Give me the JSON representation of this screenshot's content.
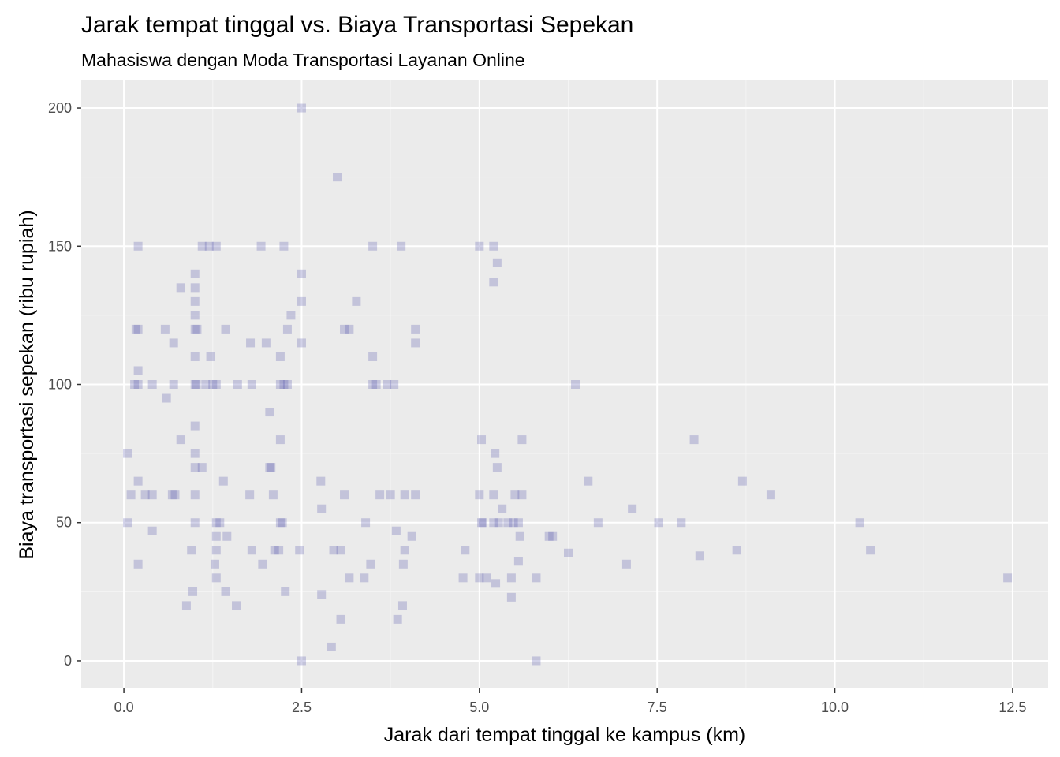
{
  "chart_data": {
    "type": "scatter",
    "title": "Jarak tempat tinggal vs. Biaya Transportasi Sepekan",
    "subtitle": "Mahasiswa dengan Moda Transportasi Layanan Online",
    "xlabel": "Jarak dari tempat tinggal ke kampus (km)",
    "ylabel": "Biaya transportasi sepekan (ribu rupiah)",
    "xlim": [
      -0.6,
      13.0
    ],
    "ylim": [
      -10,
      210
    ],
    "x_ticks": [
      0,
      2.5,
      5,
      7.5,
      10,
      12.5
    ],
    "x_tick_labels": [
      "0.0",
      "2.5",
      "5.0",
      "7.5",
      "10.0",
      "12.5"
    ],
    "y_ticks": [
      0,
      50,
      100,
      150,
      200
    ],
    "y_tick_labels": [
      "0",
      "50",
      "100",
      "150",
      "200"
    ],
    "grid": true,
    "legend": "none",
    "point_shape": "square",
    "point_color": "#4b4ba8",
    "point_opacity": 0.25,
    "panel_background": "#ebebeb",
    "x": [
      2.5,
      3.0,
      0.2,
      1.1,
      1.2,
      1.3,
      1.93,
      2.25,
      3.5,
      3.9,
      5.0,
      5.2,
      5.25,
      5.2,
      1.0,
      2.5,
      1.0,
      0.8,
      1.0,
      2.5,
      3.27,
      1.0,
      2.35,
      0.17,
      0.2,
      0.58,
      1.0,
      1.03,
      1.43,
      2.3,
      3.1,
      3.17,
      4.1,
      0.7,
      1.78,
      2.0,
      2.5,
      4.1,
      1.0,
      1.22,
      2.2,
      3.5,
      0.2,
      0.15,
      0.2,
      0.4,
      0.7,
      1.0,
      1.02,
      1.15,
      1.25,
      1.3,
      1.6,
      1.8,
      2.2,
      2.25,
      2.3,
      3.5,
      3.55,
      3.7,
      3.8,
      6.35,
      0.6,
      2.05,
      1.0,
      0.8,
      2.2,
      5.03,
      5.6,
      8.02,
      0.05,
      1.0,
      5.22,
      1.0,
      1.1,
      2.05,
      2.07,
      5.25,
      1.4,
      2.77,
      6.53,
      8.7,
      0.2,
      0.1,
      0.3,
      0.4,
      0.68,
      0.72,
      1.0,
      1.77,
      2.1,
      3.1,
      3.6,
      3.75,
      3.95,
      4.1,
      5.0,
      5.2,
      5.5,
      5.6,
      9.1,
      2.78,
      5.32,
      7.15,
      0.05,
      1.0,
      1.3,
      1.35,
      2.2,
      2.23,
      3.4,
      5.05,
      5.03,
      5.2,
      5.27,
      5.4,
      5.48,
      5.55,
      6.67,
      7.52,
      7.84,
      10.35,
      0.4,
      3.83,
      1.45,
      5.57,
      5.98,
      6.03,
      1.3,
      4.05,
      0.95,
      1.3,
      1.8,
      2.12,
      2.18,
      2.47,
      2.95,
      3.05,
      3.95,
      4.8,
      6.25,
      8.62,
      10.5,
      8.1,
      0.2,
      1.28,
      1.95,
      3.47,
      3.93,
      5.55,
      7.07,
      1.3,
      3.17,
      3.38,
      4.77,
      5.0,
      5.1,
      5.45,
      5.8,
      12.43,
      1.43,
      2.27,
      0.97,
      2.78,
      5.23,
      5.45,
      0.88,
      1.58,
      3.92,
      3.05,
      3.85,
      2.92,
      2.5,
      5.8
    ],
    "y": [
      200,
      175,
      150,
      150,
      150,
      150,
      150,
      150,
      150,
      150,
      150,
      150,
      144,
      137,
      140,
      140,
      135,
      135,
      130,
      130,
      130,
      125,
      125,
      120,
      120,
      120,
      120,
      120,
      120,
      120,
      120,
      120,
      120,
      115,
      115,
      115,
      115,
      115,
      110,
      110,
      110,
      110,
      105,
      100,
      100,
      100,
      100,
      100,
      100,
      100,
      100,
      100,
      100,
      100,
      100,
      100,
      100,
      100,
      100,
      100,
      100,
      100,
      95,
      90,
      85,
      80,
      80,
      80,
      80,
      80,
      75,
      75,
      75,
      70,
      70,
      70,
      70,
      70,
      65,
      65,
      65,
      65,
      65,
      60,
      60,
      60,
      60,
      60,
      60,
      60,
      60,
      60,
      60,
      60,
      60,
      60,
      60,
      60,
      60,
      60,
      60,
      55,
      55,
      55,
      50,
      50,
      50,
      50,
      50,
      50,
      50,
      50,
      50,
      50,
      50,
      50,
      50,
      50,
      50,
      50,
      50,
      50,
      47,
      47,
      45,
      45,
      45,
      45,
      45,
      45,
      40,
      40,
      40,
      40,
      40,
      40,
      40,
      40,
      40,
      40,
      39,
      40,
      40,
      38,
      35,
      35,
      35,
      35,
      35,
      36,
      35,
      30,
      30,
      30,
      30,
      30,
      30,
      30,
      30,
      30,
      25,
      25,
      25,
      24,
      28,
      23,
      20,
      20,
      20,
      15,
      15,
      5,
      0,
      0
    ]
  }
}
